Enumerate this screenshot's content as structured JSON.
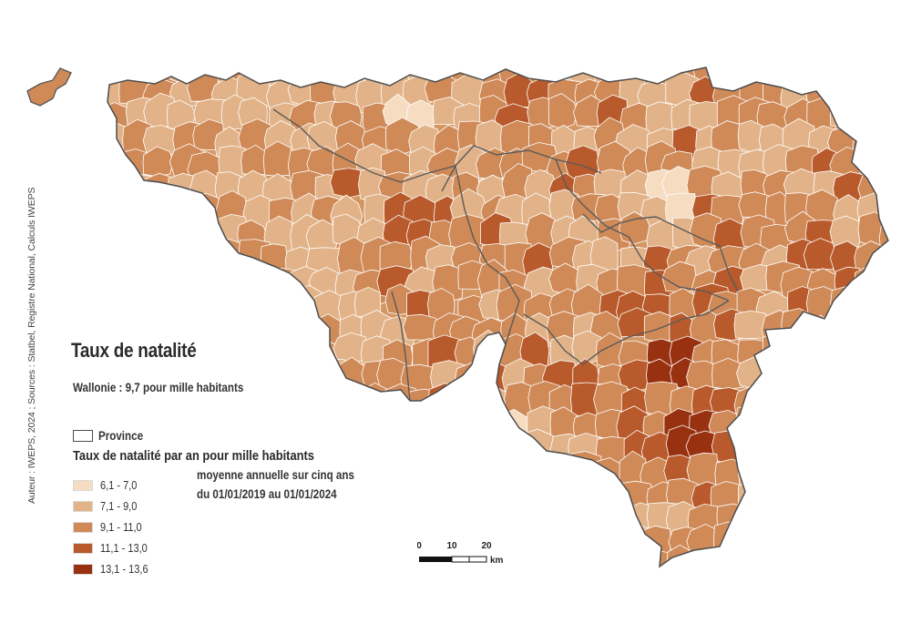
{
  "map": {
    "title": "Taux de natalité",
    "subtitle": "Wallonie : 9,7 pour mille habitants",
    "province_label": "Province",
    "legend": {
      "title": "Taux de natalité par an pour mille habitants",
      "note_line1": "moyenne annuelle sur cinq ans",
      "note_line2": "du 01/01/2019 au 01/01/2024",
      "classes": [
        {
          "label": "6,1 - 7,0",
          "color": "#f6dcc1"
        },
        {
          "label": "7,1 - 9,0",
          "color": "#e2b388"
        },
        {
          "label": "9,1 - 11,0",
          "color": "#cf8a58"
        },
        {
          "label": "11,1 - 13,0",
          "color": "#b85a2b"
        },
        {
          "label": "13,1 - 13,6",
          "color": "#98310f"
        }
      ]
    },
    "scale": {
      "ticks": [
        "0",
        "10",
        "20"
      ],
      "unit": "km"
    },
    "source": "Auteur : IWEPS, 2024 ; Sources : Statbel, Registre National, Calculs IWEPS"
  }
}
